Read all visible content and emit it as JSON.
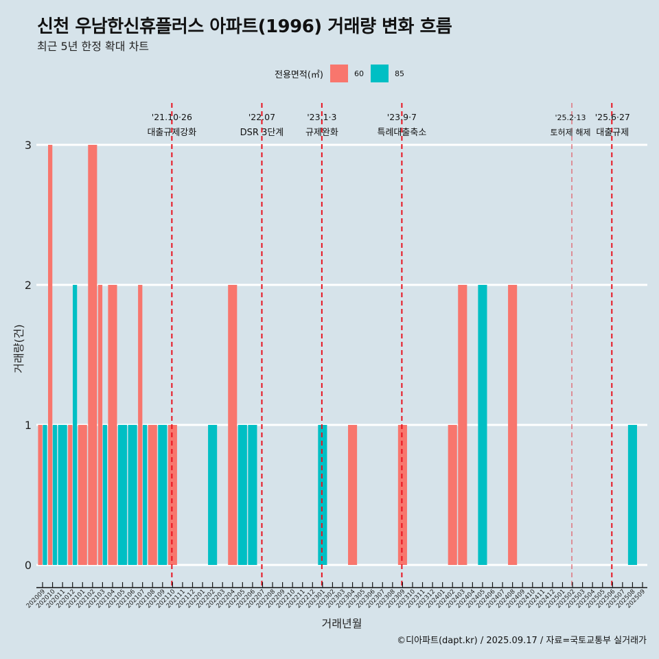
{
  "title": "신천 우남한신휴플러스 아파트(1996) 거래량 변화 흐름",
  "subtitle": "최근 5년 한정 확대 차트",
  "caption": "©디아파트(dapt.kr) / 2025.09.17 / 자료=국토교통부 실거래가",
  "legend": {
    "title": "전용면적(㎡)",
    "items": [
      {
        "label": "60",
        "color": "#f8766d"
      },
      {
        "label": "85",
        "color": "#00bfc4"
      }
    ]
  },
  "colors": {
    "background": "#d6e3ea",
    "grid": "#ffffff",
    "event_line": "#e8121e",
    "series_60": "#f8766d",
    "series_85": "#00bfc4"
  },
  "chart_data": {
    "type": "bar",
    "bar_mode": "dodge",
    "title": "신천 우남한신휴플러스 아파트(1996) 거래량 변화 흐름",
    "xlabel": "거래년월",
    "ylabel": "거래량(건)",
    "ylim": [
      0,
      3
    ],
    "yticks": [
      0,
      1,
      2,
      3
    ],
    "grid": true,
    "legend_position": "top",
    "categories": [
      "202009",
      "202010",
      "202011",
      "202012",
      "202101",
      "202102",
      "202103",
      "202104",
      "202105",
      "202106",
      "202107",
      "202108",
      "202109",
      "202110",
      "202111",
      "202112",
      "202201",
      "202202",
      "202203",
      "202204",
      "202205",
      "202206",
      "202207",
      "202208",
      "202209",
      "202210",
      "202211",
      "202212",
      "202301",
      "202302",
      "202303",
      "202304",
      "202305",
      "202306",
      "202307",
      "202308",
      "202309",
      "202310",
      "202311",
      "202312",
      "202401",
      "202402",
      "202403",
      "202404",
      "202405",
      "202406",
      "202407",
      "202408",
      "202409",
      "202410",
      "202411",
      "202412",
      "202501",
      "202502",
      "202503",
      "202504",
      "202505",
      "202506",
      "202507",
      "202508",
      "202509"
    ],
    "series": [
      {
        "name": "60",
        "color": "#f8766d",
        "values": [
          1,
          3,
          0,
          1,
          1,
          3,
          2,
          2,
          0,
          0,
          2,
          1,
          0,
          1,
          0,
          0,
          0,
          0,
          0,
          2,
          0,
          0,
          0,
          0,
          0,
          0,
          0,
          0,
          0,
          0,
          0,
          1,
          0,
          0,
          0,
          0,
          1,
          0,
          0,
          0,
          0,
          1,
          2,
          0,
          0,
          0,
          0,
          2,
          0,
          0,
          0,
          0,
          0,
          0,
          0,
          0,
          0,
          0,
          0,
          0,
          0
        ]
      },
      {
        "name": "85",
        "color": "#00bfc4",
        "values": [
          1,
          1,
          1,
          2,
          0,
          0,
          1,
          0,
          1,
          1,
          1,
          0,
          1,
          0,
          0,
          0,
          0,
          1,
          0,
          0,
          1,
          1,
          0,
          0,
          0,
          0,
          0,
          0,
          1,
          0,
          0,
          0,
          0,
          0,
          0,
          0,
          0,
          0,
          0,
          0,
          0,
          0,
          0,
          0,
          2,
          0,
          0,
          0,
          0,
          0,
          0,
          0,
          0,
          0,
          0,
          0,
          0,
          0,
          0,
          1,
          0
        ]
      }
    ],
    "events": [
      {
        "category": "202110",
        "date": "'21.10·26",
        "label": "대출규제강화",
        "style": "strong"
      },
      {
        "category": "202207",
        "date": "'22.07",
        "label": "DSR 3단계",
        "style": "strong"
      },
      {
        "category": "202301",
        "date": "'23.1·3",
        "label": "규제완화",
        "style": "strong"
      },
      {
        "category": "202309",
        "date": "'23.9·7",
        "label": "특례대출축소",
        "style": "strong"
      },
      {
        "category": "202502",
        "date": "'25.2·13",
        "label": "토허제 해제",
        "style": "light"
      },
      {
        "category": "202506",
        "date": "'25.6·27",
        "label": "대출규제",
        "style": "strong"
      }
    ]
  }
}
